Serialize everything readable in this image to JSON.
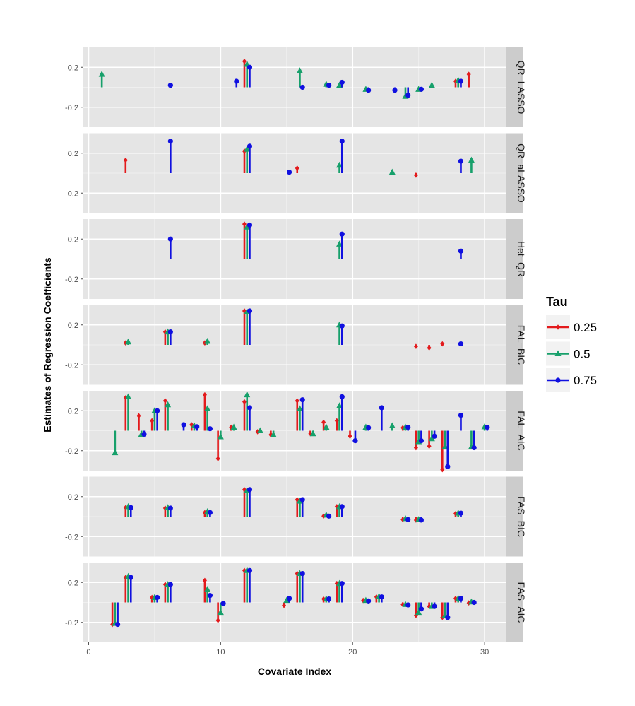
{
  "chart_data": {
    "type": "lollipop",
    "ylabel": "Estimates of Regression Coefficients",
    "xlabel": "Covariate Index",
    "legend_title": "Tau",
    "legend_position": "right",
    "grid": true,
    "xlim": [
      -0.4,
      31.6
    ],
    "xticks": [
      0,
      10,
      20,
      30
    ],
    "ylim": [
      -0.4,
      0.4
    ],
    "yticks": [
      -0.2,
      0.2
    ],
    "legend": [
      {
        "name": "0.25",
        "color": "#e31a1c",
        "marker": "diamond"
      },
      {
        "name": "0.5",
        "color": "#17a06b",
        "marker": "triangle"
      },
      {
        "name": "0.75",
        "color": "#1010e0",
        "marker": "circle"
      }
    ],
    "panels": [
      {
        "title": "QR−LASSO",
        "series": [
          {
            "x": [
              12,
              28,
              29
            ],
            "values": [
              0.26,
              0.06,
              0.13
            ]
          },
          {
            "x": [
              1,
              12,
              16,
              18,
              19,
              21,
              24,
              25,
              26,
              28
            ],
            "values": [
              0.13,
              0.23,
              0.165,
              0.03,
              0.02,
              -0.02,
              -0.09,
              -0.02,
              0.02,
              0.07
            ]
          },
          {
            "x": [
              6,
              11,
              12,
              16,
              18,
              19,
              21,
              23,
              24,
              25,
              28
            ],
            "values": [
              0.02,
              0.06,
              0.2,
              0.0,
              0.02,
              0.05,
              -0.03,
              -0.03,
              -0.08,
              -0.02,
              0.06
            ]
          }
        ]
      },
      {
        "title": "QR−aLASSO",
        "series": [
          {
            "x": [
              3,
              12,
              16,
              25
            ],
            "values": [
              0.13,
              0.22,
              0.05,
              -0.02
            ]
          },
          {
            "x": [
              12,
              19,
              23,
              29
            ],
            "values": [
              0.24,
              0.08,
              0.01,
              0.13
            ]
          },
          {
            "x": [
              6,
              12,
              15,
              19,
              28
            ],
            "values": [
              0.32,
              0.27,
              0.01,
              0.32,
              0.12
            ]
          }
        ]
      },
      {
        "title": "Het−QR",
        "series": [
          {
            "x": [
              12
            ],
            "values": [
              0.35
            ]
          },
          {
            "x": [
              12,
              19
            ],
            "values": [
              0.32,
              0.15
            ]
          },
          {
            "x": [
              6,
              12,
              19,
              28
            ],
            "values": [
              0.2,
              0.34,
              0.25,
              0.08
            ]
          }
        ]
      },
      {
        "title": "FAL−BIC",
        "series": [
          {
            "x": [
              3,
              6,
              9,
              12,
              25,
              26,
              27
            ],
            "values": [
              0.02,
              0.13,
              0.02,
              0.34,
              -0.015,
              -0.03,
              0.01
            ]
          },
          {
            "x": [
              3,
              6,
              9,
              12,
              19
            ],
            "values": [
              0.03,
              0.13,
              0.035,
              0.33,
              0.2
            ]
          },
          {
            "x": [
              6,
              12,
              19,
              28
            ],
            "values": [
              0.13,
              0.34,
              0.19,
              0.01
            ]
          }
        ]
      },
      {
        "title": "FAL−AIC",
        "series": [
          {
            "x": [
              3,
              4,
              5,
              6,
              8,
              9,
              10,
              11,
              12,
              13,
              14,
              16,
              17,
              18,
              19,
              20,
              24,
              25,
              26,
              27
            ],
            "values": [
              0.33,
              0.15,
              0.1,
              0.3,
              0.06,
              0.36,
              -0.28,
              0.035,
              0.29,
              -0.01,
              -0.04,
              0.3,
              -0.03,
              0.085,
              0.1,
              -0.055,
              0.03,
              -0.17,
              -0.155,
              -0.39
            ]
          },
          {
            "x": [
              2,
              3,
              4,
              5,
              6,
              8,
              9,
              10,
              11,
              12,
              13,
              14,
              16,
              17,
              18,
              19,
              21,
              23,
              24,
              25,
              26,
              27,
              29,
              30
            ],
            "values": [
              -0.22,
              0.34,
              -0.035,
              0.2,
              0.26,
              0.05,
              0.22,
              -0.06,
              0.035,
              0.36,
              0.0,
              -0.04,
              0.22,
              -0.03,
              0.035,
              0.25,
              0.035,
              0.05,
              0.035,
              -0.11,
              -0.08,
              -0.16,
              -0.16,
              0.04
            ]
          },
          {
            "x": [
              4,
              5,
              7,
              8,
              9,
              12,
              16,
              19,
              20,
              21,
              22,
              24,
              25,
              26,
              27,
              28,
              29,
              30
            ],
            "values": [
              -0.035,
              0.2,
              0.06,
              0.04,
              0.02,
              0.23,
              0.31,
              0.34,
              -0.1,
              0.03,
              0.23,
              0.035,
              -0.1,
              -0.055,
              -0.36,
              0.155,
              -0.17,
              0.035
            ]
          }
        ]
      },
      {
        "title": "FAS−BIC",
        "series": [
          {
            "x": [
              3,
              6,
              9,
              12,
              16,
              18,
              19,
              24,
              25,
              28
            ],
            "values": [
              0.09,
              0.085,
              0.04,
              0.27,
              0.17,
              0.005,
              0.1,
              -0.03,
              -0.035,
              0.03
            ]
          },
          {
            "x": [
              3,
              6,
              9,
              12,
              16,
              18,
              19,
              24,
              25,
              28
            ],
            "values": [
              0.1,
              0.09,
              0.05,
              0.26,
              0.155,
              0.015,
              0.1,
              -0.02,
              -0.03,
              0.035
            ]
          },
          {
            "x": [
              3,
              6,
              9,
              12,
              16,
              18,
              19,
              24,
              25,
              28
            ],
            "values": [
              0.09,
              0.085,
              0.04,
              0.27,
              0.17,
              0.005,
              0.1,
              -0.03,
              -0.035,
              0.035
            ]
          }
        ]
      },
      {
        "title": "FAS−AIC",
        "series": [
          {
            "x": [
              2,
              3,
              5,
              6,
              9,
              10,
              12,
              15,
              16,
              18,
              19,
              21,
              22,
              24,
              25,
              26,
              27,
              28,
              29
            ],
            "values": [
              -0.22,
              0.25,
              0.05,
              0.18,
              0.22,
              -0.18,
              0.32,
              -0.03,
              0.29,
              0.035,
              0.19,
              0.02,
              0.055,
              -0.02,
              -0.13,
              -0.04,
              -0.15,
              0.04,
              -0.005
            ]
          },
          {
            "x": [
              2,
              3,
              5,
              6,
              9,
              10,
              12,
              15,
              16,
              18,
              19,
              21,
              22,
              24,
              25,
              26,
              27,
              28,
              29
            ],
            "values": [
              -0.21,
              0.26,
              0.05,
              0.18,
              0.13,
              -0.1,
              0.32,
              0.02,
              0.29,
              0.035,
              0.19,
              0.02,
              0.06,
              -0.02,
              -0.1,
              -0.04,
              -0.13,
              0.04,
              0.005
            ]
          },
          {
            "x": [
              2,
              3,
              5,
              6,
              9,
              10,
              12,
              15,
              16,
              18,
              19,
              21,
              22,
              24,
              25,
              26,
              27,
              28,
              29
            ],
            "values": [
              -0.22,
              0.25,
              0.05,
              0.18,
              0.07,
              -0.01,
              0.32,
              0.04,
              0.29,
              0.035,
              0.19,
              0.015,
              0.055,
              -0.025,
              -0.065,
              -0.04,
              -0.15,
              0.04,
              0.0
            ]
          }
        ]
      }
    ]
  }
}
